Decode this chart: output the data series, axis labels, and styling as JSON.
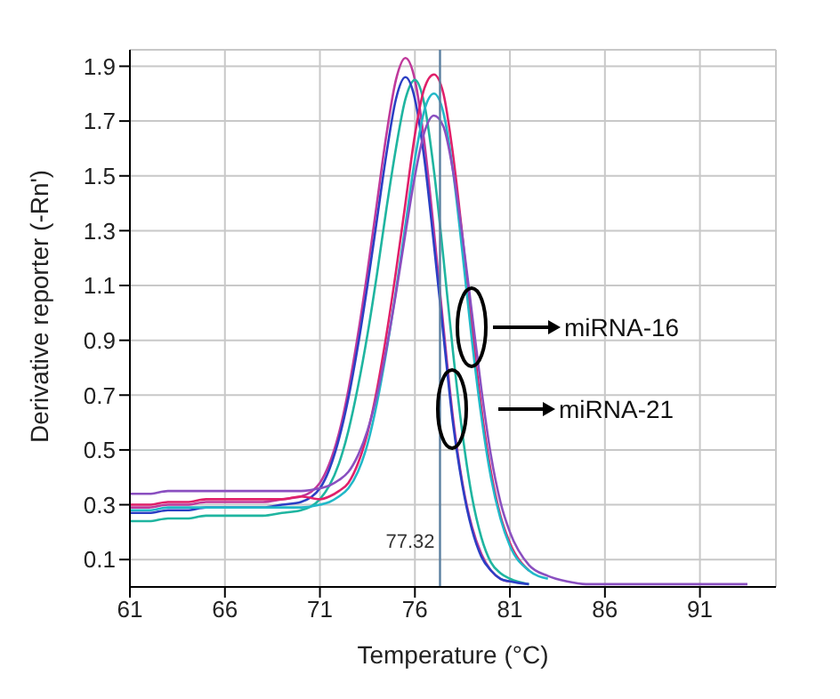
{
  "chart_data": {
    "type": "line",
    "xlabel": "Temperature (°C)",
    "ylabel": "Derivative reporter (-Rn')",
    "x": [
      61,
      62,
      63,
      64,
      65,
      66,
      67,
      68,
      69,
      70,
      71,
      71.5,
      72,
      72.5,
      73,
      73.5,
      74,
      74.5,
      75,
      75.5,
      76,
      76.5,
      77,
      77.5,
      78,
      78.5,
      79,
      79.5,
      80,
      80.5,
      81,
      82,
      83,
      84,
      85,
      87,
      90,
      93.5
    ],
    "series": [
      {
        "color": "#c0399b",
        "values": [
          0.29,
          0.29,
          0.3,
          0.3,
          0.31,
          0.31,
          0.31,
          0.31,
          0.32,
          0.33,
          0.38,
          0.45,
          0.56,
          0.72,
          0.92,
          1.15,
          1.4,
          1.65,
          1.85,
          1.93,
          1.85,
          1.62,
          1.3,
          0.95,
          0.62,
          0.38,
          0.22,
          0.12,
          0.06,
          0.03,
          0.02,
          null,
          null,
          null,
          null,
          null,
          null,
          null
        ]
      },
      {
        "color": "#1fb5a0",
        "values": [
          0.24,
          0.24,
          0.25,
          0.25,
          0.26,
          0.26,
          0.26,
          0.26,
          0.27,
          0.28,
          0.32,
          0.37,
          0.45,
          0.57,
          0.73,
          0.92,
          1.14,
          1.38,
          1.6,
          1.78,
          1.85,
          1.76,
          1.52,
          1.2,
          0.86,
          0.56,
          0.33,
          0.18,
          0.09,
          0.05,
          0.03,
          0.01,
          null,
          null,
          null,
          null,
          null,
          null
        ]
      },
      {
        "color": "#2b3fc4",
        "values": [
          0.27,
          0.27,
          0.28,
          0.28,
          0.29,
          0.29,
          0.29,
          0.29,
          0.3,
          0.31,
          0.36,
          0.43,
          0.54,
          0.69,
          0.88,
          1.1,
          1.34,
          1.58,
          1.78,
          1.86,
          1.78,
          1.56,
          1.25,
          0.92,
          0.6,
          0.37,
          0.21,
          0.11,
          0.06,
          0.03,
          0.02,
          0.01,
          null,
          null,
          null,
          null,
          null,
          null
        ]
      },
      {
        "color": "#e0206a",
        "values": [
          0.3,
          0.3,
          0.31,
          0.31,
          0.32,
          0.32,
          0.32,
          0.32,
          0.32,
          0.33,
          0.32,
          0.33,
          0.35,
          0.38,
          0.45,
          0.56,
          0.72,
          0.92,
          1.15,
          1.4,
          1.65,
          1.82,
          1.87,
          1.8,
          1.58,
          1.28,
          0.95,
          0.65,
          0.42,
          0.26,
          0.16,
          0.06,
          null,
          null,
          null,
          null,
          null,
          null
        ]
      },
      {
        "color": "#22b8c8",
        "values": [
          0.28,
          0.28,
          0.29,
          0.29,
          0.29,
          0.29,
          0.29,
          0.29,
          0.29,
          0.29,
          0.3,
          0.31,
          0.33,
          0.36,
          0.42,
          0.52,
          0.67,
          0.86,
          1.08,
          1.32,
          1.56,
          1.74,
          1.8,
          1.73,
          1.52,
          1.22,
          0.9,
          0.62,
          0.4,
          0.25,
          0.15,
          0.06,
          0.03,
          null,
          null,
          null,
          null,
          null
        ]
      },
      {
        "color": "#8a4fc0",
        "values": [
          0.34,
          0.34,
          0.35,
          0.35,
          0.35,
          0.35,
          0.35,
          0.35,
          0.35,
          0.35,
          0.36,
          0.37,
          0.39,
          0.42,
          0.48,
          0.57,
          0.7,
          0.87,
          1.07,
          1.29,
          1.5,
          1.66,
          1.72,
          1.68,
          1.52,
          1.28,
          1.0,
          0.72,
          0.48,
          0.31,
          0.2,
          0.08,
          0.04,
          0.02,
          0.01,
          0.01,
          0.01,
          0.01
        ]
      }
    ],
    "xlim": [
      61,
      95
    ],
    "xticks": [
      61,
      66,
      71,
      76,
      81,
      86,
      91
    ],
    "ylim": [
      0,
      1.96
    ],
    "yticks": [
      0.1,
      0.3,
      0.5,
      0.7,
      0.9,
      1.1,
      1.3,
      1.5,
      1.7,
      1.9
    ],
    "grid": true,
    "ref_lines": [
      {
        "axis": "x",
        "value": 77.32,
        "label": "77.32",
        "color": "#5a7fa0"
      }
    ],
    "annotations": [
      "miRNA-16",
      "miRNA-21"
    ]
  }
}
